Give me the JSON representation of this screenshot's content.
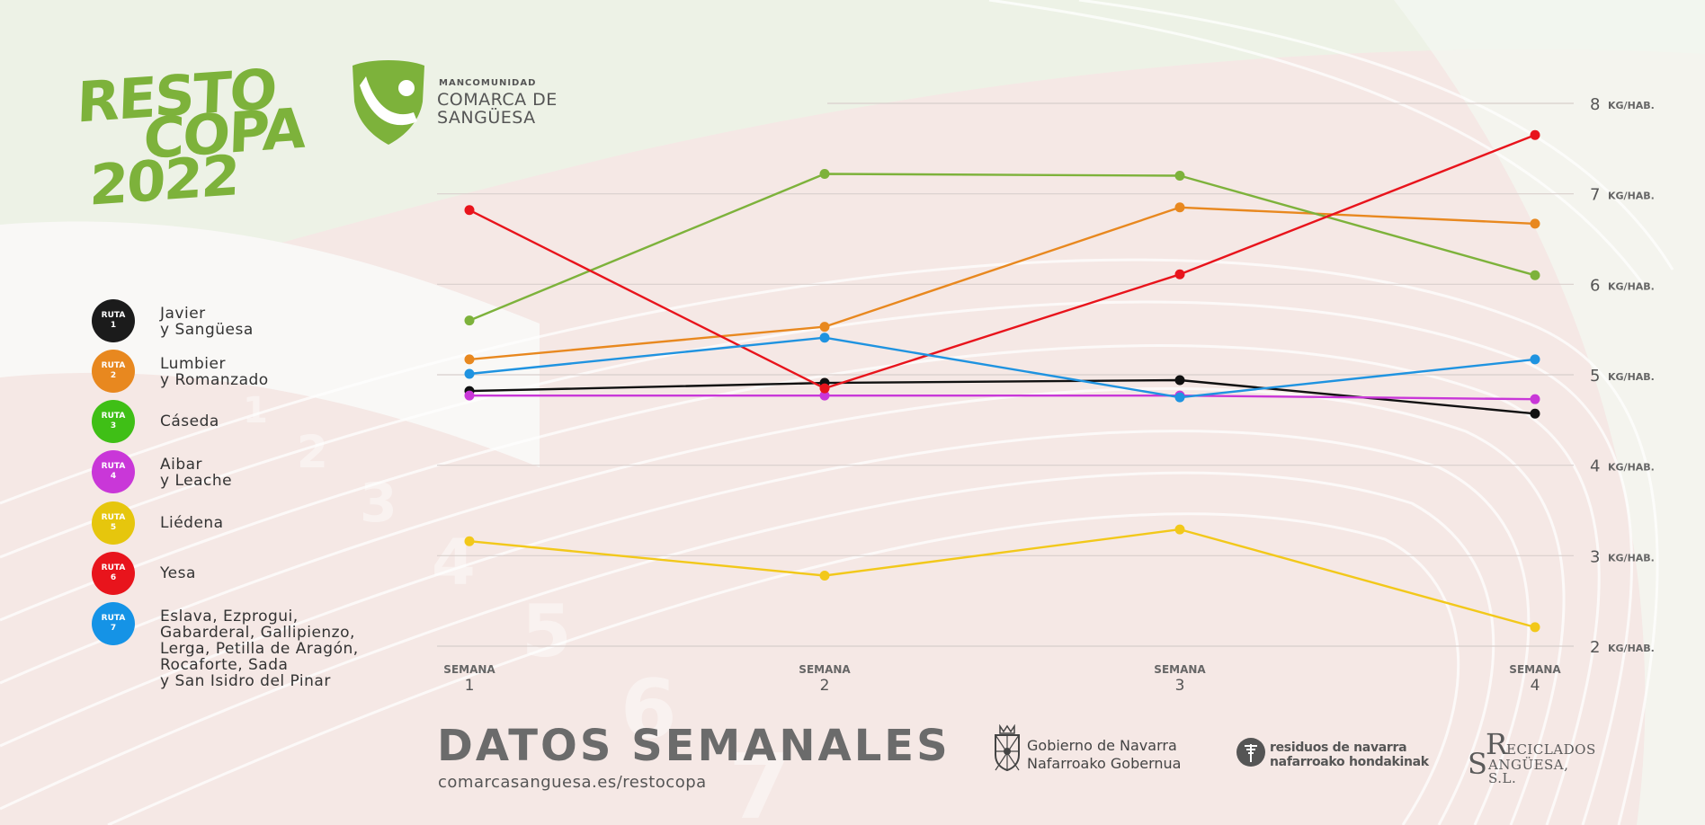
{
  "logo": {
    "lines": [
      "RESTO",
      "COPA",
      "2022"
    ],
    "org_small": "MANCOMUNIDAD",
    "org_line1": "COMARCA DE",
    "org_line2": "SANGÜESA"
  },
  "legend": [
    {
      "badge_top": "RUTA",
      "badge_num": "1",
      "label": "Javier\ny Sangüesa",
      "color": "#1b1b1b"
    },
    {
      "badge_top": "RUTA",
      "badge_num": "2",
      "label": "Lumbier\ny Romanzado",
      "color": "#e8881f"
    },
    {
      "badge_top": "RUTA",
      "badge_num": "3",
      "label": "Cáseda",
      "color": "#3fbf16"
    },
    {
      "badge_top": "RUTA",
      "badge_num": "4",
      "label": "Aibar\ny Leache",
      "color": "#c937d8"
    },
    {
      "badge_top": "RUTA",
      "badge_num": "5",
      "label": "Liédena",
      "color": "#e6c60d"
    },
    {
      "badge_top": "RUTA",
      "badge_num": "6",
      "label": "Yesa",
      "color": "#e8141c"
    },
    {
      "badge_top": "RUTA",
      "badge_num": "7",
      "label": "Eslava, Ezprogui,\nGabarderal, Gallipienzo,\nLerga, Petilla de Aragón,\nRocaforte, Sada\ny San Isidro del Pinar",
      "color": "#1593e6"
    }
  ],
  "chart_data": {
    "type": "line",
    "x": [
      "SEMANA 1",
      "SEMANA 2",
      "SEMANA 3",
      "SEMANA 4"
    ],
    "x_labels": [
      {
        "top": "SEMANA",
        "num": "1"
      },
      {
        "top": "SEMANA",
        "num": "2"
      },
      {
        "top": "SEMANA",
        "num": "3"
      },
      {
        "top": "SEMANA",
        "num": "4"
      }
    ],
    "y_ticks": [
      2,
      3,
      4,
      5,
      6,
      7,
      8
    ],
    "y_unit": "KG/HAB.",
    "ylim": [
      2,
      8
    ],
    "grid": true,
    "series": [
      {
        "name": "RUTA 1",
        "color": "#111111",
        "values": [
          4.82,
          4.91,
          4.94,
          4.57
        ]
      },
      {
        "name": "RUTA 2",
        "color": "#e8881f",
        "values": [
          5.17,
          5.53,
          6.85,
          6.67
        ]
      },
      {
        "name": "RUTA 3",
        "color": "#7db23b",
        "values": [
          5.6,
          7.22,
          7.2,
          6.1
        ]
      },
      {
        "name": "RUTA 4",
        "color": "#c937d8",
        "values": [
          4.77,
          4.77,
          4.77,
          4.73
        ]
      },
      {
        "name": "RUTA 5",
        "color": "#f2c81a",
        "values": [
          3.16,
          2.78,
          3.29,
          2.21
        ]
      },
      {
        "name": "RUTA 6",
        "color": "#e8141c",
        "values": [
          6.82,
          4.85,
          6.11,
          7.65
        ]
      },
      {
        "name": "RUTA 7",
        "color": "#1f93e0",
        "values": [
          5.01,
          5.41,
          4.75,
          5.17
        ]
      }
    ]
  },
  "footer": {
    "title": "DATOS SEMANALES",
    "url": "comarcasanguesa.es/restocopa",
    "gov_line1": "Gobierno de Navarra",
    "gov_line2": "Nafarroako Gobernua",
    "res_line1": "residuos de navarra",
    "res_line2": "nafarroako hondakinak",
    "rec_s1": "S",
    "rec_r": "R",
    "rec_eciclados": "ECICLADOS",
    "rec_s2": "S",
    "rec_anguesa": "ANGÜESA, S.L."
  }
}
